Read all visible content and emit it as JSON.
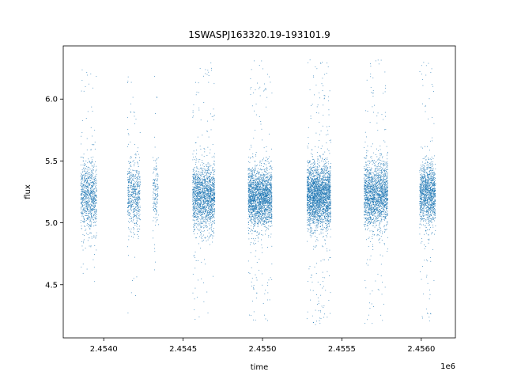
{
  "chart_data": {
    "type": "scatter",
    "title": "1SWASPJ163320.19-193101.9",
    "xlabel": "time",
    "ylabel": "flux",
    "x_offset_label": "1e6",
    "xlim": [
      2453745,
      2456215
    ],
    "ylim": [
      4.07,
      6.43
    ],
    "xticks": [
      {
        "value": 2454000,
        "label": "2.4540"
      },
      {
        "value": 2454500,
        "label": "2.4545"
      },
      {
        "value": 2455000,
        "label": "2.4550"
      },
      {
        "value": 2455500,
        "label": "2.4555"
      },
      {
        "value": 2456000,
        "label": "2.4560"
      }
    ],
    "yticks": [
      {
        "value": 4.5,
        "label": "4.5"
      },
      {
        "value": 5.0,
        "label": "5.0"
      },
      {
        "value": 5.5,
        "label": "5.5"
      },
      {
        "value": 6.0,
        "label": "6.0"
      }
    ],
    "grid": false,
    "legend": "none",
    "marker_color": "#1f77b4",
    "series": [
      {
        "observing_seasons": [
          {
            "x_range": [
              2453855,
              2453955
            ],
            "flux_center": 5.22,
            "flux_spread": 0.14,
            "flux_min": 4.48,
            "flux_max": 6.27,
            "points": 900
          },
          {
            "x_range": [
              2454150,
              2454230
            ],
            "flux_center": 5.24,
            "flux_spread": 0.14,
            "flux_min": 4.26,
            "flux_max": 6.27,
            "points": 600
          },
          {
            "x_range": [
              2454310,
              2454345
            ],
            "flux_center": 5.23,
            "flux_spread": 0.14,
            "flux_min": 4.55,
            "flux_max": 6.2,
            "points": 160
          },
          {
            "x_range": [
              2454560,
              2454700
            ],
            "flux_center": 5.21,
            "flux_spread": 0.13,
            "flux_min": 4.22,
            "flux_max": 6.33,
            "points": 1700
          },
          {
            "x_range": [
              2454910,
              2455060
            ],
            "flux_center": 5.21,
            "flux_spread": 0.12,
            "flux_min": 4.2,
            "flux_max": 6.33,
            "points": 2200
          },
          {
            "x_range": [
              2455280,
              2455430
            ],
            "flux_center": 5.22,
            "flux_spread": 0.13,
            "flux_min": 4.16,
            "flux_max": 6.32,
            "points": 2600
          },
          {
            "x_range": [
              2455640,
              2455790
            ],
            "flux_center": 5.23,
            "flux_spread": 0.13,
            "flux_min": 4.17,
            "flux_max": 6.32,
            "points": 1900
          },
          {
            "x_range": [
              2455990,
              2456090
            ],
            "flux_center": 5.24,
            "flux_spread": 0.13,
            "flux_min": 4.17,
            "flux_max": 6.3,
            "points": 1300
          }
        ]
      }
    ]
  }
}
